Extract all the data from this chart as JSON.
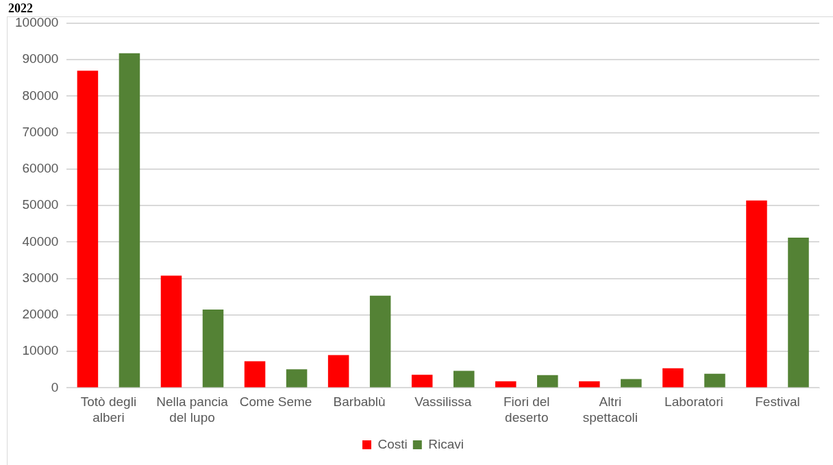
{
  "chart_data": {
    "type": "bar",
    "title": "2022",
    "categories": [
      "Totò degli alberi",
      "Nella pancia del lupo",
      "Come Seme",
      "Barbablù",
      "Vassilissa",
      "Fiori del deserto",
      "Altri spettacoli",
      "Laboratori",
      "Festival"
    ],
    "series": [
      {
        "name": "Costi",
        "color": "#ff0000",
        "values": [
          87000,
          30800,
          7300,
          9000,
          3600,
          1800,
          1800,
          5400,
          51400
        ]
      },
      {
        "name": "Ricavi",
        "color": "#548235",
        "values": [
          91800,
          21500,
          5100,
          25300,
          4700,
          3500,
          2400,
          3900,
          41200
        ]
      }
    ],
    "ylim": [
      0,
      100000
    ],
    "yticks": [
      0,
      10000,
      20000,
      30000,
      40000,
      50000,
      60000,
      70000,
      80000,
      90000,
      100000
    ],
    "grid": "y",
    "legend": "bottom"
  }
}
